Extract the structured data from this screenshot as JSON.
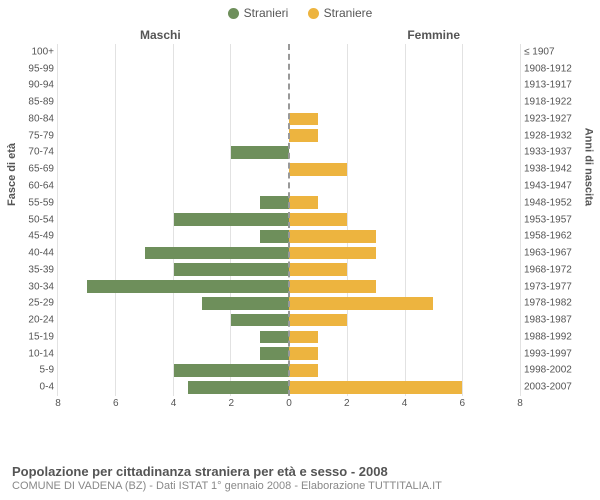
{
  "legend": {
    "male": {
      "label": "Stranieri",
      "color": "#6e8f5b"
    },
    "female": {
      "label": "Straniere",
      "color": "#edb43f"
    }
  },
  "headers": {
    "male": "Maschi",
    "female": "Femmine"
  },
  "axis_labels": {
    "left": "Fasce di età",
    "right": "Anni di nascita"
  },
  "chart": {
    "type": "population-pyramid",
    "xmax": 8,
    "xticks": [
      0,
      2,
      4,
      6,
      8
    ],
    "grid_color": "#e2e2e2",
    "background_color": "#ffffff",
    "zero_line_color": "#999999",
    "bar_color_male": "#6e8f5b",
    "bar_color_female": "#edb43f",
    "label_fontsize": 10,
    "categories": [
      {
        "age": "100+",
        "birth": "≤ 1907",
        "m": 0,
        "f": 0
      },
      {
        "age": "95-99",
        "birth": "1908-1912",
        "m": 0,
        "f": 0
      },
      {
        "age": "90-94",
        "birth": "1913-1917",
        "m": 0,
        "f": 0
      },
      {
        "age": "85-89",
        "birth": "1918-1922",
        "m": 0,
        "f": 0
      },
      {
        "age": "80-84",
        "birth": "1923-1927",
        "m": 0,
        "f": 1
      },
      {
        "age": "75-79",
        "birth": "1928-1932",
        "m": 0,
        "f": 1
      },
      {
        "age": "70-74",
        "birth": "1933-1937",
        "m": 2,
        "f": 0
      },
      {
        "age": "65-69",
        "birth": "1938-1942",
        "m": 0,
        "f": 2
      },
      {
        "age": "60-64",
        "birth": "1943-1947",
        "m": 0,
        "f": 0
      },
      {
        "age": "55-59",
        "birth": "1948-1952",
        "m": 1,
        "f": 1
      },
      {
        "age": "50-54",
        "birth": "1953-1957",
        "m": 4,
        "f": 2
      },
      {
        "age": "45-49",
        "birth": "1958-1962",
        "m": 1,
        "f": 3
      },
      {
        "age": "40-44",
        "birth": "1963-1967",
        "m": 5,
        "f": 3
      },
      {
        "age": "35-39",
        "birth": "1968-1972",
        "m": 4,
        "f": 2
      },
      {
        "age": "30-34",
        "birth": "1973-1977",
        "m": 7,
        "f": 3
      },
      {
        "age": "25-29",
        "birth": "1978-1982",
        "m": 3,
        "f": 5
      },
      {
        "age": "20-24",
        "birth": "1983-1987",
        "m": 2,
        "f": 2
      },
      {
        "age": "15-19",
        "birth": "1988-1992",
        "m": 1,
        "f": 1
      },
      {
        "age": "10-14",
        "birth": "1993-1997",
        "m": 1,
        "f": 1
      },
      {
        "age": "5-9",
        "birth": "1998-2002",
        "m": 4,
        "f": 1
      },
      {
        "age": "0-4",
        "birth": "2003-2007",
        "m": 3.5,
        "f": 6
      }
    ]
  },
  "footer": {
    "title": "Popolazione per cittadinanza straniera per età e sesso - 2008",
    "subtitle": "COMUNE DI VADENA (BZ) - Dati ISTAT 1° gennaio 2008 - Elaborazione TUTTITALIA.IT"
  }
}
